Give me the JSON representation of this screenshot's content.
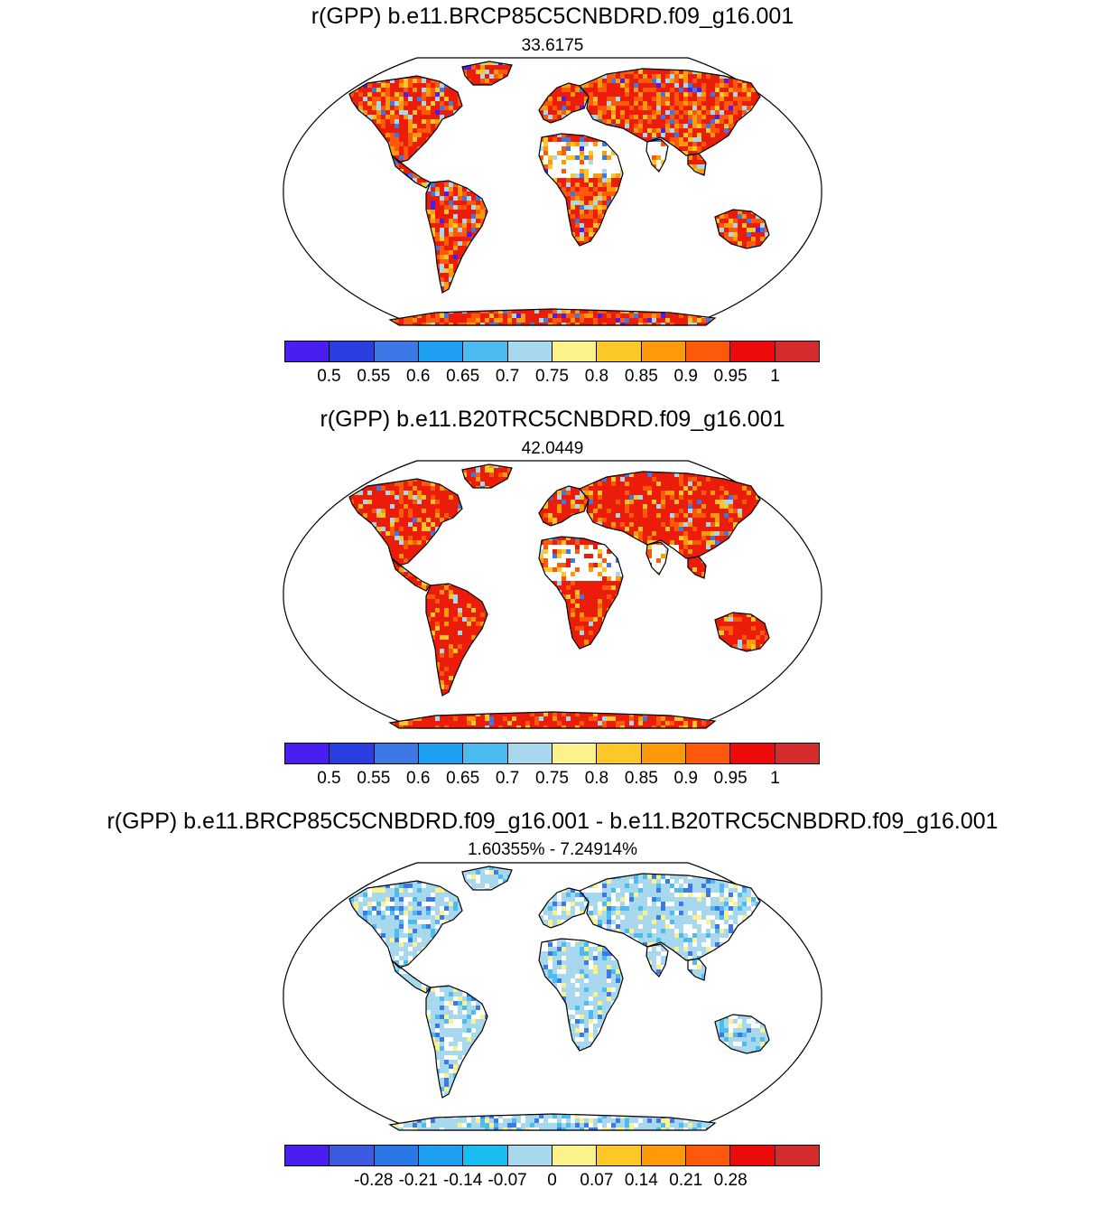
{
  "panels": [
    {
      "title": "r(GPP) b.e11.BRCP85C5CNBDRD.f09_g16.001",
      "subtitle": "33.6175",
      "colorbar": {
        "colors": [
          "#4b1ef0",
          "#2a3ee0",
          "#3c78e6",
          "#1e9ef0",
          "#4cbcf0",
          "#a8d8ee",
          "#fcf28c",
          "#fcc828",
          "#fc9a0a",
          "#fc5a0a",
          "#ec0a0a",
          "#d42c2c"
        ],
        "tick_labels": [
          "0.5",
          "0.55",
          "0.6",
          "0.65",
          "0.7",
          "0.75",
          "0.8",
          "0.85",
          "0.9",
          "0.95",
          "1"
        ]
      },
      "map_palette": [
        "#ec1c0a",
        "#fc5a0a",
        "#fc9a0a",
        "#fcc828",
        "#a8d8ee",
        "#3c78e6",
        "#4b1ef0"
      ]
    },
    {
      "title": "r(GPP) b.e11.B20TRC5CNBDRD.f09_g16.001",
      "subtitle": "42.0449",
      "colorbar": {
        "colors": [
          "#4b1ef0",
          "#2a3ee0",
          "#3c78e6",
          "#1e9ef0",
          "#4cbcf0",
          "#a8d8ee",
          "#fcf28c",
          "#fcc828",
          "#fc9a0a",
          "#fc5a0a",
          "#ec0a0a",
          "#d42c2c"
        ],
        "tick_labels": [
          "0.5",
          "0.55",
          "0.6",
          "0.65",
          "0.7",
          "0.75",
          "0.8",
          "0.85",
          "0.9",
          "0.95",
          "1"
        ]
      },
      "map_palette": [
        "#ec1c0a",
        "#ec1c0a",
        "#fc5a0a",
        "#fc9a0a",
        "#fcc828",
        "#a8d8ee",
        "#3c78e6"
      ]
    },
    {
      "title": "r(GPP) b.e11.BRCP85C5CNBDRD.f09_g16.001 - b.e11.B20TRC5CNBDRD.f09_g16.001",
      "subtitle": "1.60355% - 7.24914%",
      "colorbar": {
        "colors": [
          "#4b1ef0",
          "#3c5ae0",
          "#2a78e6",
          "#1e9ef0",
          "#18bcf0",
          "#a8d8ee",
          "#fcf28c",
          "#fcc828",
          "#fc9a0a",
          "#fc5a0a",
          "#ec0a0a",
          "#d42c2c"
        ],
        "tick_labels": [
          "-0.28",
          "-0.21",
          "-0.14",
          "-0.07",
          "0",
          "0.07",
          "0.14",
          "0.21",
          "0.28"
        ]
      },
      "map_palette": [
        "#a8d8ee",
        "#a8d8ee",
        "#a8d8ee",
        "#ffffff",
        "#fcf28c",
        "#4cbcf0",
        "#3c78e6"
      ]
    }
  ]
}
